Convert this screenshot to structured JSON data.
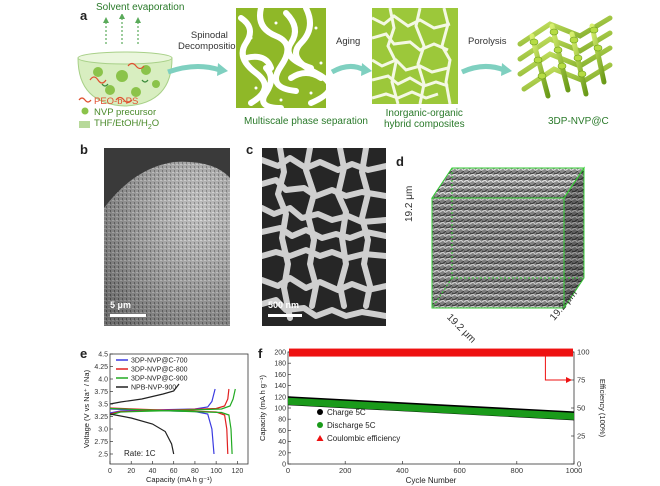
{
  "panels": {
    "a": "a",
    "b": "b",
    "c": "c",
    "d": "d",
    "e": "e",
    "f": "f"
  },
  "panel_a": {
    "solvent": "Solvent evaporation",
    "step1_line1": "Spinodal",
    "step1_line2": "Decomposition",
    "step2": "Aging",
    "step3": "Porolysis",
    "legend_peo": "PEO-b-PS",
    "legend_nvp": "NVP precursor",
    "legend_solvent": "THF/EtOH/H",
    "legend_solvent_sub": "2",
    "legend_solvent_end": "O",
    "caption1": "Multiscale phase separation",
    "caption2_line1": "Inorganic-organic",
    "caption2_line2": "hybrid composites",
    "caption3": "3DP-NVP@C"
  },
  "panel_b": {
    "scale": "5 μm"
  },
  "panel_c": {
    "scale": "500 nm"
  },
  "panel_d": {
    "dim1": "19.2 μm",
    "dim2": "19.2 μm",
    "dim3": "19.2 μm"
  },
  "chart_data": [
    {
      "type": "line",
      "panel": "e",
      "xlabel": "Capacity (mA h g⁻¹)",
      "ylabel": "Voltage (V vs Na⁺ / Na)",
      "xlim": [
        0,
        130
      ],
      "ylim": [
        2.3,
        4.5
      ],
      "xticks": [
        "0",
        "20",
        "40",
        "60",
        "80",
        "100",
        "120"
      ],
      "yticks": [
        "2.5",
        "2.75",
        "3.0",
        "3.25",
        "3.5",
        "3.75",
        "4.0",
        "4.25",
        "4.5"
      ],
      "annotation": "Rate: 1C",
      "series": [
        {
          "name": "3DP-NVP@C-700",
          "color": "#3b3be0",
          "charge": [
            [
              0,
              3.32
            ],
            [
              10,
              3.36
            ],
            [
              40,
              3.38
            ],
            [
              80,
              3.4
            ],
            [
              92,
              3.44
            ],
            [
              96,
              3.55
            ],
            [
              99,
              3.8
            ]
          ],
          "discharge": [
            [
              0,
              3.4
            ],
            [
              40,
              3.37
            ],
            [
              80,
              3.35
            ],
            [
              92,
              3.3
            ],
            [
              96,
              3.0
            ],
            [
              98,
              2.5
            ]
          ]
        },
        {
          "name": "3DP-NVP@C-800",
          "color": "#e02020",
          "charge": [
            [
              0,
              3.3
            ],
            [
              10,
              3.35
            ],
            [
              60,
              3.38
            ],
            [
              100,
              3.41
            ],
            [
              108,
              3.46
            ],
            [
              111,
              3.6
            ],
            [
              112,
              3.8
            ]
          ],
          "discharge": [
            [
              0,
              3.42
            ],
            [
              60,
              3.37
            ],
            [
              100,
              3.34
            ],
            [
              108,
              3.28
            ],
            [
              110,
              3.0
            ],
            [
              111,
              2.5
            ]
          ]
        },
        {
          "name": "3DP-NVP@C-900",
          "color": "#22aa22",
          "charge": [
            [
              0,
              3.28
            ],
            [
              10,
              3.34
            ],
            [
              60,
              3.37
            ],
            [
              105,
              3.4
            ],
            [
              113,
              3.46
            ],
            [
              116,
              3.6
            ],
            [
              118,
              3.8
            ]
          ],
          "discharge": [
            [
              0,
              3.41
            ],
            [
              60,
              3.36
            ],
            [
              105,
              3.33
            ],
            [
              112,
              3.28
            ],
            [
              114,
              3.0
            ],
            [
              115,
              2.5
            ]
          ]
        },
        {
          "name": "NPB-NVP-900",
          "color": "#222222",
          "charge": [
            [
              0,
              3.5
            ],
            [
              10,
              3.54
            ],
            [
              30,
              3.6
            ],
            [
              50,
              3.7
            ],
            [
              60,
              3.76
            ],
            [
              65,
              3.9
            ]
          ],
          "discharge": [
            [
              0,
              3.3
            ],
            [
              20,
              3.22
            ],
            [
              40,
              3.1
            ],
            [
              52,
              2.95
            ],
            [
              58,
              2.7
            ],
            [
              60,
              2.5
            ]
          ]
        }
      ]
    },
    {
      "type": "scatter",
      "panel": "f",
      "xlabel": "Cycle Number",
      "ylabel": "Capacity (mA h g⁻¹)",
      "y2label": "Efficiency (100%)",
      "xlim": [
        0,
        1000
      ],
      "ylim": [
        0,
        200
      ],
      "y2lim": [
        0,
        100
      ],
      "xticks": [
        "0",
        "200",
        "400",
        "600",
        "800",
        "1000"
      ],
      "yticks": [
        "0",
        "20",
        "40",
        "60",
        "80",
        "100",
        "120",
        "140",
        "160",
        "180",
        "200"
      ],
      "y2ticks": [
        "0",
        "25",
        "50",
        "75",
        "100"
      ],
      "series": [
        {
          "name": "Charge 5C",
          "color": "#000000",
          "start": 113,
          "end": 86
        },
        {
          "name": "Discharge 5C",
          "color": "#1a9a1a",
          "start": 112,
          "end": 85
        },
        {
          "name": "Coulombic efficiency",
          "color": "#ee1111",
          "value": 99.5
        }
      ]
    }
  ]
}
